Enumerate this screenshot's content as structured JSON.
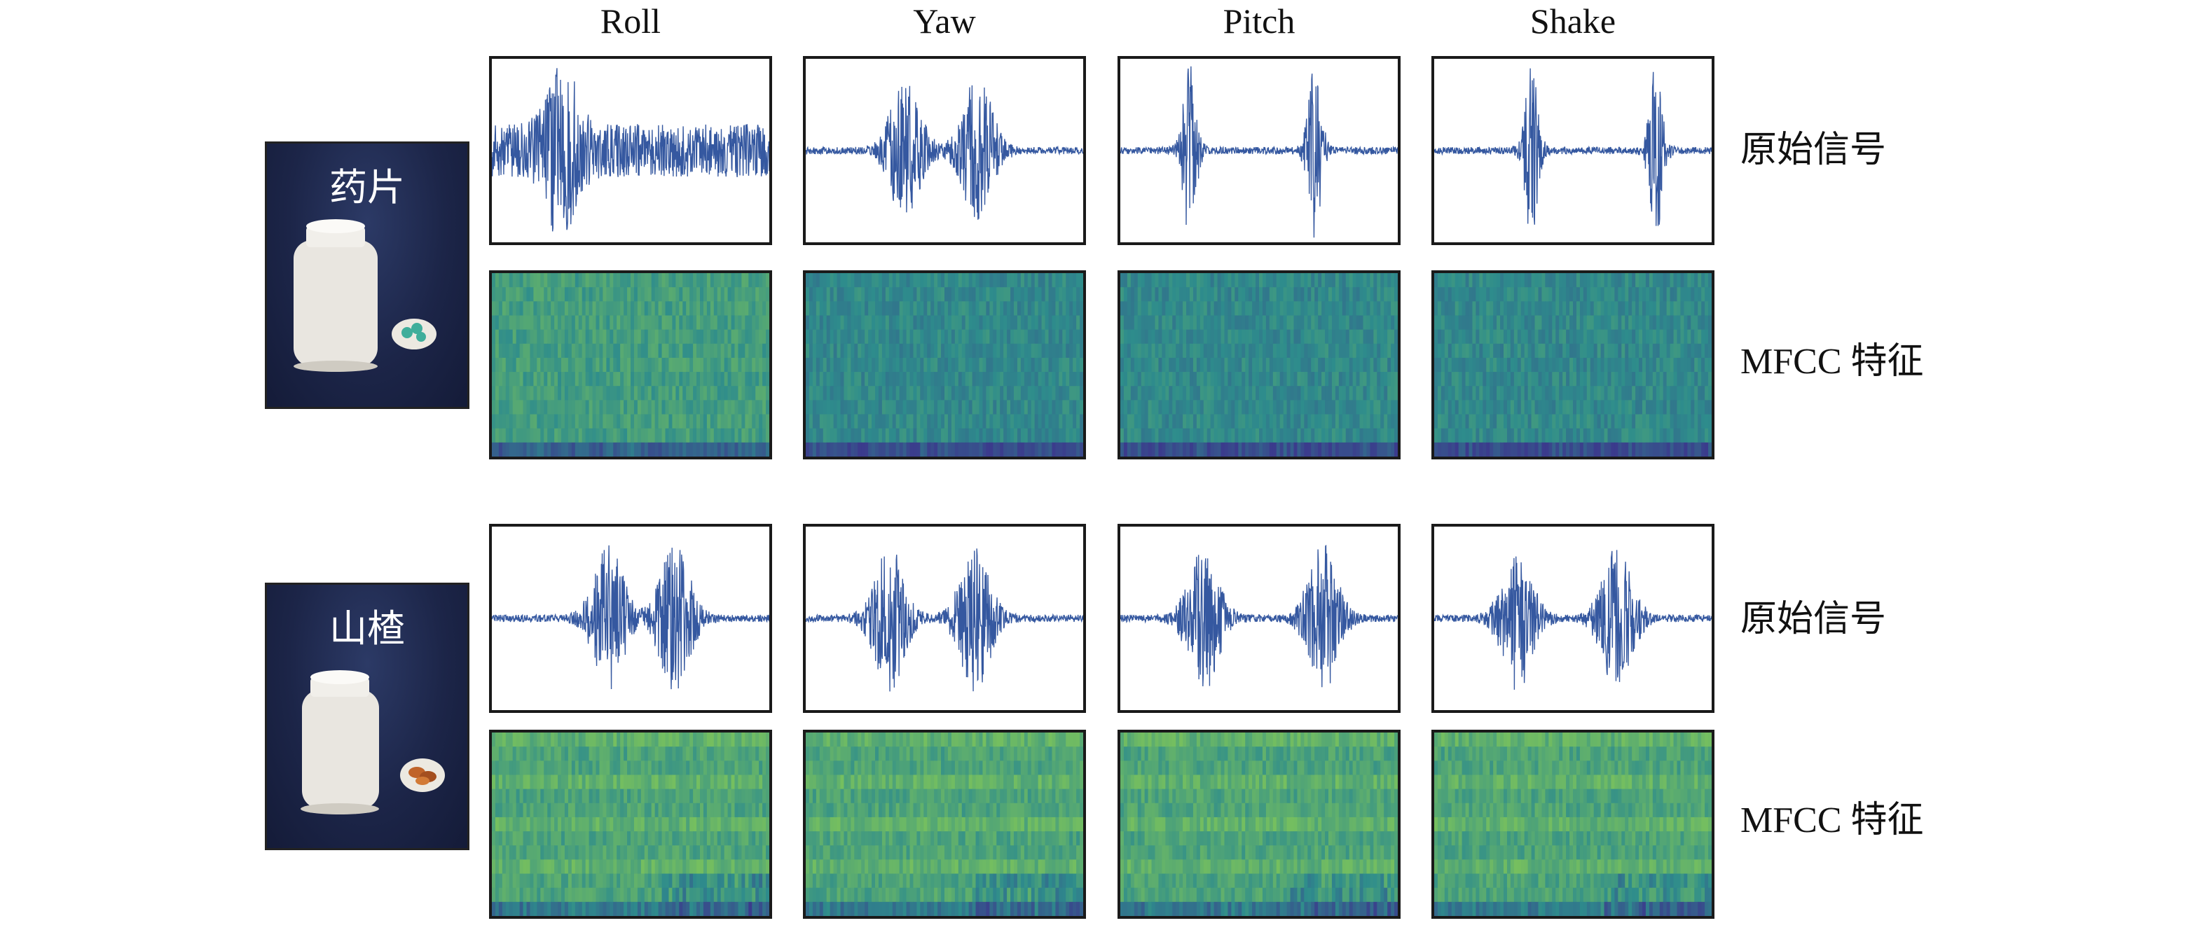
{
  "figure": {
    "column_titles": [
      "Roll",
      "Yaw",
      "Pitch",
      "Shake"
    ],
    "row_labels": {
      "raw": "原始信号",
      "mfcc": "MFCC 特征"
    },
    "groups": [
      {
        "name": "药片",
        "contents_icon": "pills-icon",
        "contents_color": "#3fae9b",
        "signals": [
          {
            "column": "Roll",
            "envelope": "dense-uniform",
            "bursts": [
              0.25
            ]
          },
          {
            "column": "Yaw",
            "envelope": "two-bursts",
            "bursts": [
              0.36,
              0.62
            ]
          },
          {
            "column": "Pitch",
            "envelope": "two-spikes",
            "bursts": [
              0.25,
              0.7
            ]
          },
          {
            "column": "Shake",
            "envelope": "two-spikes",
            "bursts": [
              0.35,
              0.8
            ]
          }
        ]
      },
      {
        "name": "山楂",
        "contents_icon": "hawthorn-icon",
        "contents_color": "#c0642a",
        "signals": [
          {
            "column": "Roll",
            "envelope": "two-bursts",
            "bursts": [
              0.42,
              0.66
            ]
          },
          {
            "column": "Yaw",
            "envelope": "two-bursts",
            "bursts": [
              0.3,
              0.61
            ]
          },
          {
            "column": "Pitch",
            "envelope": "two-bursts",
            "bursts": [
              0.3,
              0.73
            ]
          },
          {
            "column": "Shake",
            "envelope": "two-bursts",
            "bursts": [
              0.3,
              0.66
            ]
          }
        ]
      }
    ],
    "colors": {
      "waveform": "#3558a0",
      "mfcc_low": "#3b3b8c",
      "mfcc_mid": "#2e8c8c",
      "mfcc_high": "#8fd14f",
      "photo_bg": "#1c2548"
    }
  }
}
